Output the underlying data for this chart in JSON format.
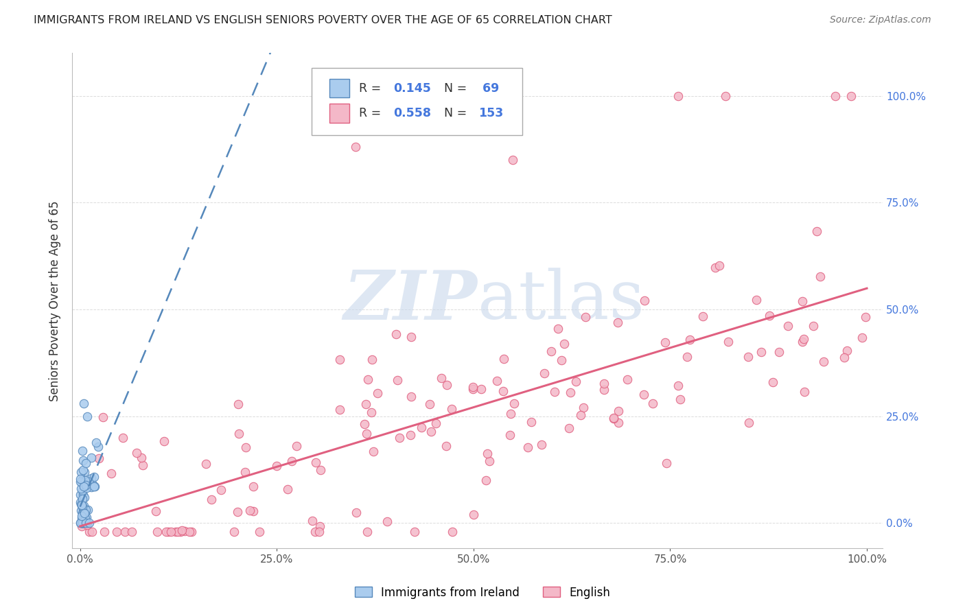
{
  "title": "IMMIGRANTS FROM IRELAND VS ENGLISH SENIORS POVERTY OVER THE AGE OF 65 CORRELATION CHART",
  "source": "Source: ZipAtlas.com",
  "ylabel": "Seniors Poverty Over the Age of 65",
  "ireland_color": "#aaccee",
  "ireland_edge": "#5588bb",
  "english_color": "#f4b8c8",
  "english_edge": "#e06080",
  "trend_ireland_color": "#5588bb",
  "trend_english_color": "#e06080",
  "watermark": "ZIPatlas",
  "background_color": "#ffffff",
  "grid_color": "#cccccc",
  "title_color": "#222222",
  "right_axis_color": "#4477dd",
  "bottom_legend_labels": [
    "Immigrants from Ireland",
    "English"
  ]
}
